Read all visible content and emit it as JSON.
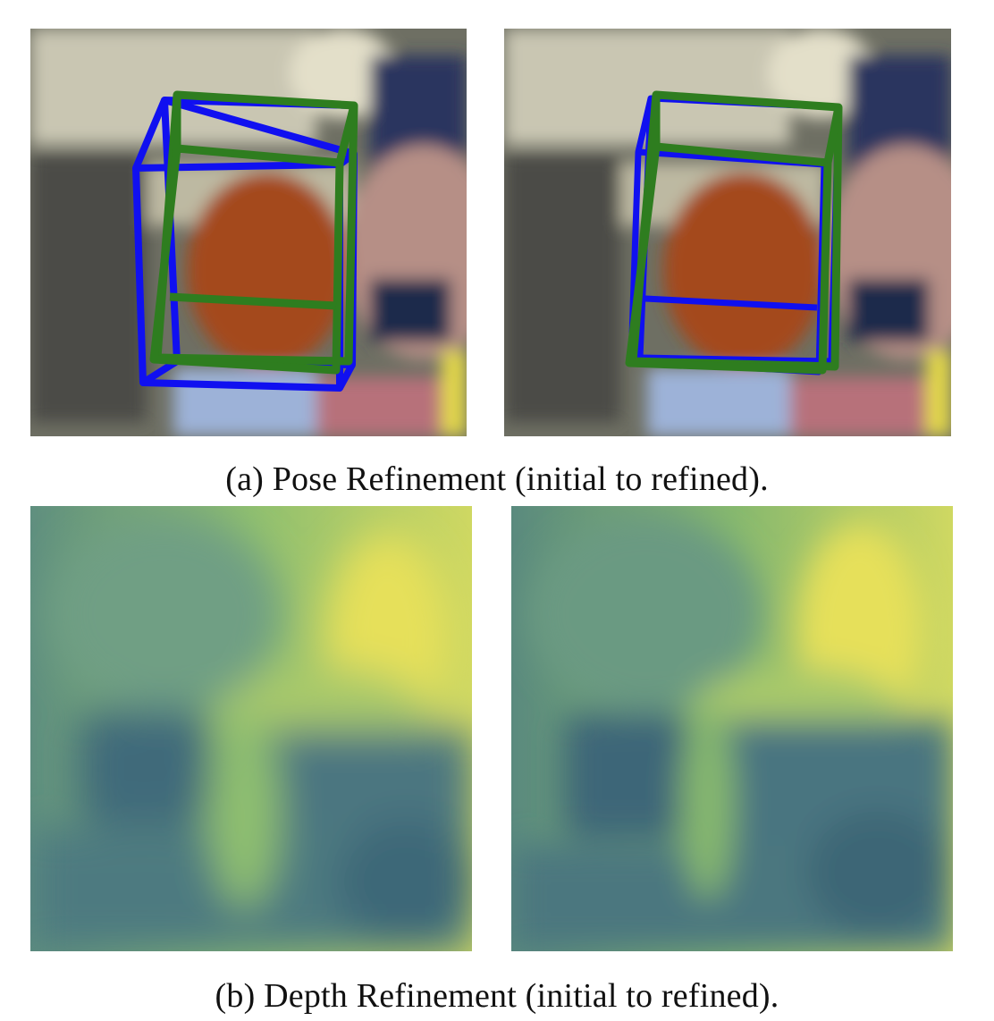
{
  "figure": {
    "subfigure_a": {
      "caption": "(a) Pose Refinement (initial to refined).",
      "panels": [
        {
          "name": "initial-pose",
          "description": "initial"
        },
        {
          "name": "refined-pose",
          "description": "refined"
        }
      ],
      "colors": {
        "predicted_box": "#1010f0",
        "ground_truth_box": "#2e7d1f"
      }
    },
    "subfigure_b": {
      "caption": "(b) Depth Refinement (initial to refined).",
      "panels": [
        {
          "name": "initial-depth",
          "description": "initial"
        },
        {
          "name": "refined-depth",
          "description": "refined"
        }
      ],
      "colormap": [
        "#3a5f7a",
        "#5f8f7f",
        "#8fbf6f",
        "#e6e05a"
      ]
    }
  }
}
